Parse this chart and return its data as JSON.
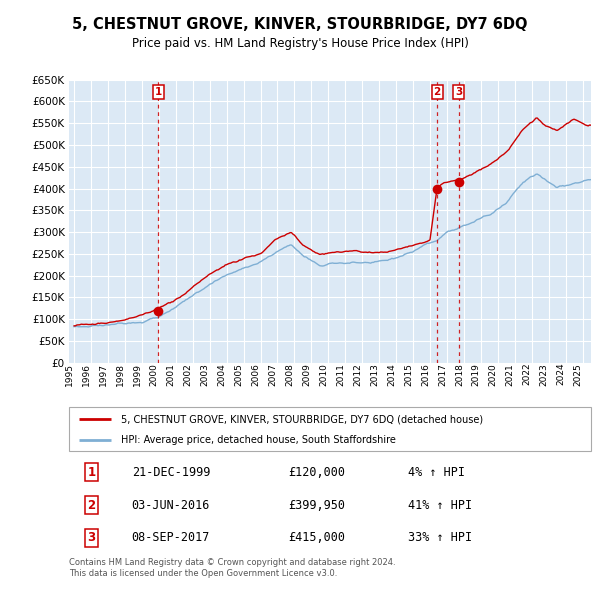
{
  "title": "5, CHESTNUT GROVE, KINVER, STOURBRIDGE, DY7 6DQ",
  "subtitle": "Price paid vs. HM Land Registry's House Price Index (HPI)",
  "legend_label_red": "5, CHESTNUT GROVE, KINVER, STOURBRIDGE, DY7 6DQ (detached house)",
  "legend_label_blue": "HPI: Average price, detached house, South Staffordshire",
  "sale1_label": "1",
  "sale1_date": "21-DEC-1999",
  "sale1_price": "£120,000",
  "sale1_hpi": "4% ↑ HPI",
  "sale1_x": 1999.97,
  "sale1_y": 120000,
  "sale2_label": "2",
  "sale2_date": "03-JUN-2016",
  "sale2_price": "£399,950",
  "sale2_hpi": "41% ↑ HPI",
  "sale2_x": 2016.42,
  "sale2_y": 399950,
  "sale3_label": "3",
  "sale3_date": "08-SEP-2017",
  "sale3_price": "£415,000",
  "sale3_hpi": "33% ↑ HPI",
  "sale3_x": 2017.69,
  "sale3_y": 415000,
  "ylim": [
    0,
    650000
  ],
  "xlim_start": 1994.7,
  "xlim_end": 2025.5,
  "background_color": "#dce9f5",
  "grid_color": "#ffffff",
  "red_color": "#cc0000",
  "blue_color": "#7fafd4",
  "footer_text": "Contains HM Land Registry data © Crown copyright and database right 2024.\nThis data is licensed under the Open Government Licence v3.0.",
  "hpi_key_years": [
    1995.0,
    1996.0,
    1997.0,
    1998.0,
    1999.0,
    2000.0,
    2001.0,
    2002.0,
    2003.0,
    2004.0,
    2005.0,
    2006.0,
    2007.0,
    2007.8,
    2008.5,
    2009.5,
    2010.5,
    2011.5,
    2012.5,
    2013.5,
    2014.5,
    2015.5,
    2016.0,
    2016.5,
    2017.0,
    2017.5,
    2018.5,
    2019.5,
    2020.5,
    2021.5,
    2022.3,
    2022.8,
    2023.5,
    2024.5,
    2025.3
  ],
  "hpi_key_vals": [
    83000,
    86000,
    90000,
    96000,
    103000,
    115000,
    135000,
    160000,
    190000,
    210000,
    225000,
    240000,
    265000,
    280000,
    255000,
    232000,
    240000,
    242000,
    238000,
    242000,
    252000,
    265000,
    272000,
    280000,
    295000,
    300000,
    315000,
    330000,
    360000,
    410000,
    430000,
    415000,
    400000,
    410000,
    420000
  ],
  "red_key_years": [
    1995.0,
    1996.0,
    1997.0,
    1998.0,
    1999.0,
    1999.97,
    2001.0,
    2002.0,
    2003.0,
    2004.0,
    2005.0,
    2006.0,
    2007.0,
    2007.8,
    2008.5,
    2009.5,
    2010.5,
    2011.5,
    2012.5,
    2013.5,
    2014.5,
    2015.5,
    2016.0,
    2016.42,
    2016.8,
    2017.0,
    2017.69,
    2018.0,
    2018.5,
    2019.5,
    2020.5,
    2021.5,
    2022.3,
    2022.8,
    2023.5,
    2024.0,
    2024.5,
    2025.3
  ],
  "red_key_vals": [
    85000,
    88000,
    93000,
    99000,
    107000,
    120000,
    140000,
    167000,
    198000,
    218000,
    232000,
    250000,
    278000,
    293000,
    262000,
    240000,
    248000,
    250000,
    246000,
    250000,
    260000,
    275000,
    282000,
    399950,
    410000,
    412000,
    415000,
    420000,
    430000,
    455000,
    480000,
    530000,
    560000,
    540000,
    530000,
    545000,
    555000,
    540000
  ]
}
